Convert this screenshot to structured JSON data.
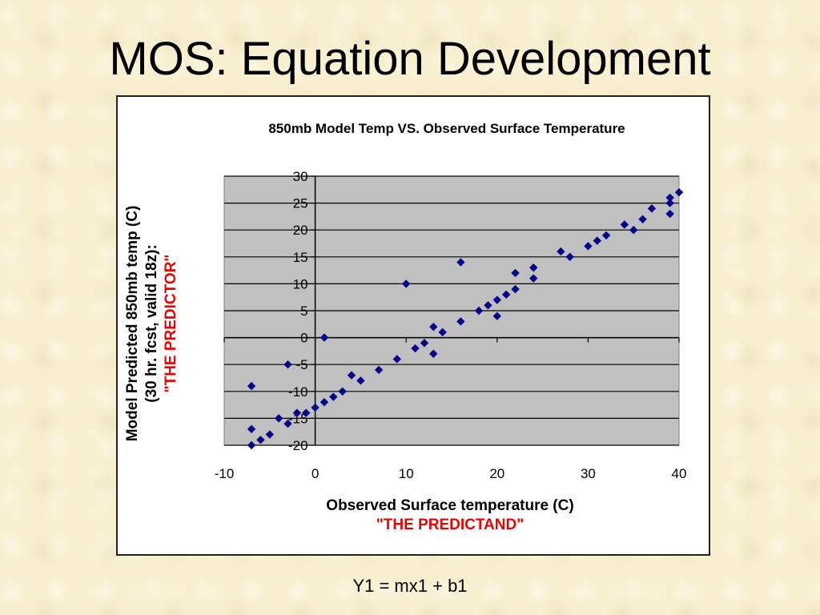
{
  "slide": {
    "title": "MOS: Equation Development",
    "equation": "Y1 = mx1 + b1"
  },
  "chart_data": {
    "type": "scatter",
    "title": "850mb Model Temp  VS. Observed Surface Temperature",
    "xlabel": "Observed Surface temperature (C)",
    "xlabel_sub": "\"THE PREDICTAND\"",
    "ylabel_line1": "Model Predicted 850mb temp (C)",
    "ylabel_line2": "(30 hr. fcst, valid 18z):",
    "ylabel_line3": "\"THE PREDICTOR\"",
    "xlim": [
      -10,
      40
    ],
    "ylim": [
      -20,
      30
    ],
    "xticks": [
      -10,
      0,
      10,
      20,
      30,
      40
    ],
    "yticks": [
      30,
      25,
      20,
      15,
      10,
      5,
      0,
      -5,
      -10,
      -15,
      -20
    ],
    "plot_background": "#c0c0c0",
    "marker_color": "#00008b",
    "grid": "horizontal",
    "points": [
      {
        "x": -7,
        "y": -9
      },
      {
        "x": -7,
        "y": -17
      },
      {
        "x": -7,
        "y": -20
      },
      {
        "x": -6,
        "y": -19
      },
      {
        "x": -5,
        "y": -18
      },
      {
        "x": -4,
        "y": -15
      },
      {
        "x": -3,
        "y": -16
      },
      {
        "x": -3,
        "y": -5
      },
      {
        "x": -2,
        "y": -14
      },
      {
        "x": -1,
        "y": -14
      },
      {
        "x": 0,
        "y": -13
      },
      {
        "x": 1,
        "y": 0
      },
      {
        "x": 1,
        "y": -12
      },
      {
        "x": 2,
        "y": -11
      },
      {
        "x": 3,
        "y": -10
      },
      {
        "x": 4,
        "y": -7
      },
      {
        "x": 5,
        "y": -8
      },
      {
        "x": 7,
        "y": -6
      },
      {
        "x": 9,
        "y": -4
      },
      {
        "x": 10,
        "y": 10
      },
      {
        "x": 11,
        "y": -2
      },
      {
        "x": 12,
        "y": -1
      },
      {
        "x": 13,
        "y": 2
      },
      {
        "x": 13,
        "y": -3
      },
      {
        "x": 14,
        "y": 1
      },
      {
        "x": 16,
        "y": 14
      },
      {
        "x": 16,
        "y": 3
      },
      {
        "x": 18,
        "y": 5
      },
      {
        "x": 19,
        "y": 6
      },
      {
        "x": 20,
        "y": 7
      },
      {
        "x": 20,
        "y": 4
      },
      {
        "x": 21,
        "y": 8
      },
      {
        "x": 22,
        "y": 9
      },
      {
        "x": 22,
        "y": 12
      },
      {
        "x": 24,
        "y": 13
      },
      {
        "x": 24,
        "y": 11
      },
      {
        "x": 27,
        "y": 16
      },
      {
        "x": 28,
        "y": 15
      },
      {
        "x": 30,
        "y": 17
      },
      {
        "x": 31,
        "y": 18
      },
      {
        "x": 32,
        "y": 19
      },
      {
        "x": 34,
        "y": 21
      },
      {
        "x": 35,
        "y": 20
      },
      {
        "x": 36,
        "y": 22
      },
      {
        "x": 37,
        "y": 24
      },
      {
        "x": 39,
        "y": 26
      },
      {
        "x": 39,
        "y": 25
      },
      {
        "x": 39,
        "y": 23
      },
      {
        "x": 40,
        "y": 27
      }
    ]
  }
}
